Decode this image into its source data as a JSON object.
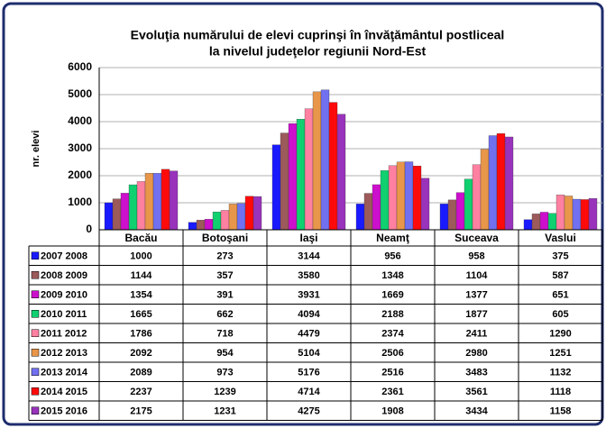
{
  "chart_data": {
    "type": "bar",
    "title": [
      "Evoluţia numărului de elevi cuprinşi în învăţământul postliceal",
      "la nivelul judeţelor regiunii  Nord-Est"
    ],
    "y_label": "nr. elevi",
    "categories": [
      "Bacău",
      "Botoşani",
      "Iaşi",
      "Neamţ",
      "Suceava",
      "Vaslui"
    ],
    "ylim": [
      0,
      6000
    ],
    "yticks": [
      0,
      1000,
      2000,
      3000,
      4000,
      5000,
      6000
    ],
    "grid": true,
    "series": [
      {
        "name": "2007 2008",
        "color": "#1a1aff",
        "values": [
          1000,
          273,
          3144,
          956,
          958,
          375
        ]
      },
      {
        "name": "2008 2009",
        "color": "#9c5a5a",
        "values": [
          1144,
          357,
          3580,
          1348,
          1104,
          587
        ]
      },
      {
        "name": "2009 2010",
        "color": "#cc10cc",
        "values": [
          1354,
          391,
          3931,
          1669,
          1377,
          651
        ]
      },
      {
        "name": "2010 2011",
        "color": "#10d070",
        "values": [
          1665,
          662,
          4094,
          2188,
          1877,
          605
        ]
      },
      {
        "name": "2011 2012",
        "color": "#ff80a0",
        "values": [
          1786,
          718,
          4479,
          2374,
          2411,
          1290
        ]
      },
      {
        "name": "2012 2013",
        "color": "#e8964a",
        "values": [
          2092,
          954,
          5104,
          2506,
          2980,
          1251
        ]
      },
      {
        "name": "2013 2014",
        "color": "#7070f0",
        "values": [
          2089,
          973,
          5176,
          2516,
          3483,
          1132
        ]
      },
      {
        "name": "2014 2015",
        "color": "#ff0a0a",
        "values": [
          2237,
          1239,
          4714,
          2361,
          3561,
          1118
        ]
      },
      {
        "name": "2015 2016",
        "color": "#9933bb",
        "values": [
          2175,
          1231,
          4275,
          1908,
          3434,
          1158
        ]
      }
    ]
  }
}
